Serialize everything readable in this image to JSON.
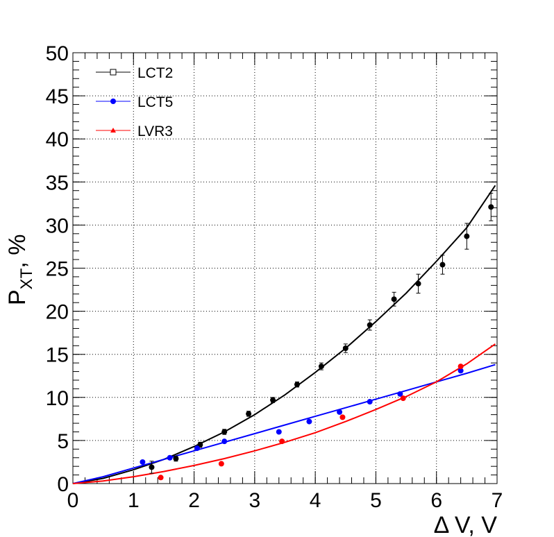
{
  "chart_data": {
    "type": "scatter",
    "xlabel": "Δ V, V",
    "ylabel_main": "P",
    "ylabel_sub": "XT",
    "ylabel_rest": ", %",
    "xlim": [
      0,
      7
    ],
    "ylim": [
      0,
      50
    ],
    "x_ticks": [
      0,
      1,
      2,
      3,
      4,
      5,
      6,
      7
    ],
    "y_ticks": [
      0,
      5,
      10,
      15,
      20,
      25,
      30,
      35,
      40,
      45,
      50
    ],
    "grid": true,
    "legend_position": "top-left",
    "series": [
      {
        "name": "LCT2",
        "color": "#000000",
        "legend_marker": "open-square",
        "points": [
          {
            "x": 1.3,
            "y": 1.9,
            "err": 0.7
          },
          {
            "x": 1.7,
            "y": 2.9,
            "err": 0.3
          },
          {
            "x": 2.1,
            "y": 4.5,
            "err": 0.3
          },
          {
            "x": 2.5,
            "y": 6.0,
            "err": 0.3
          },
          {
            "x": 2.9,
            "y": 8.1,
            "err": 0.3
          },
          {
            "x": 3.3,
            "y": 9.7,
            "err": 0.3
          },
          {
            "x": 3.7,
            "y": 11.5,
            "err": 0.3
          },
          {
            "x": 4.1,
            "y": 13.6,
            "err": 0.4
          },
          {
            "x": 4.5,
            "y": 15.7,
            "err": 0.5
          },
          {
            "x": 4.9,
            "y": 18.4,
            "err": 0.6
          },
          {
            "x": 5.3,
            "y": 21.4,
            "err": 0.8
          },
          {
            "x": 5.7,
            "y": 23.2,
            "err": 1.1
          },
          {
            "x": 6.1,
            "y": 25.4,
            "err": 1.1
          },
          {
            "x": 6.5,
            "y": 28.7,
            "err": 1.5
          },
          {
            "x": 6.9,
            "y": 32.1,
            "err": 1.6
          }
        ],
        "fit": [
          [
            0,
            0
          ],
          [
            0.5,
            0.6
          ],
          [
            1,
            1.6
          ],
          [
            1.5,
            2.8
          ],
          [
            2,
            4.3
          ],
          [
            2.5,
            6.0
          ],
          [
            3,
            8.0
          ],
          [
            3.5,
            10.3
          ],
          [
            4,
            12.9
          ],
          [
            4.5,
            15.7
          ],
          [
            5,
            18.8
          ],
          [
            5.5,
            22.1
          ],
          [
            6,
            25.8
          ],
          [
            6.5,
            29.7
          ],
          [
            6.97,
            34.6
          ]
        ]
      },
      {
        "name": "LCT5",
        "color": "#0000ff",
        "legend_marker": "filled-circle",
        "points": [
          {
            "x": 1.15,
            "y": 2.5
          },
          {
            "x": 1.6,
            "y": 3.0
          },
          {
            "x": 2.05,
            "y": 4.1
          },
          {
            "x": 2.5,
            "y": 4.9
          },
          {
            "x": 3.4,
            "y": 6.0
          },
          {
            "x": 3.9,
            "y": 7.2
          },
          {
            "x": 4.4,
            "y": 8.3
          },
          {
            "x": 4.9,
            "y": 9.5
          },
          {
            "x": 5.4,
            "y": 10.4
          },
          {
            "x": 6.4,
            "y": 13.1
          }
        ],
        "fit": [
          [
            0,
            0
          ],
          [
            0.5,
            0.8
          ],
          [
            1,
            1.8
          ],
          [
            1.5,
            2.8
          ],
          [
            2,
            3.8
          ],
          [
            2.5,
            4.8
          ],
          [
            3,
            5.8
          ],
          [
            3.5,
            6.8
          ],
          [
            4,
            7.8
          ],
          [
            4.5,
            8.8
          ],
          [
            5,
            9.8
          ],
          [
            5.5,
            10.8
          ],
          [
            6,
            11.8
          ],
          [
            6.5,
            12.8
          ],
          [
            6.97,
            13.8
          ]
        ]
      },
      {
        "name": "LVR3",
        "color": "#ff0000",
        "legend_marker": "filled-triangle",
        "points": [
          {
            "x": 1.45,
            "y": 0.7
          },
          {
            "x": 2.45,
            "y": 2.3
          },
          {
            "x": 3.45,
            "y": 4.9
          },
          {
            "x": 4.45,
            "y": 7.7
          },
          {
            "x": 5.45,
            "y": 9.9
          },
          {
            "x": 6.4,
            "y": 13.6
          }
        ],
        "fit": [
          [
            0,
            0
          ],
          [
            0.5,
            0.3
          ],
          [
            1,
            0.8
          ],
          [
            1.5,
            1.4
          ],
          [
            2,
            2.1
          ],
          [
            2.5,
            2.9
          ],
          [
            3,
            3.8
          ],
          [
            3.5,
            4.8
          ],
          [
            4,
            5.9
          ],
          [
            4.5,
            7.2
          ],
          [
            5,
            8.6
          ],
          [
            5.5,
            10.1
          ],
          [
            6,
            11.8
          ],
          [
            6.5,
            13.9
          ],
          [
            6.97,
            16.2
          ]
        ]
      }
    ]
  }
}
